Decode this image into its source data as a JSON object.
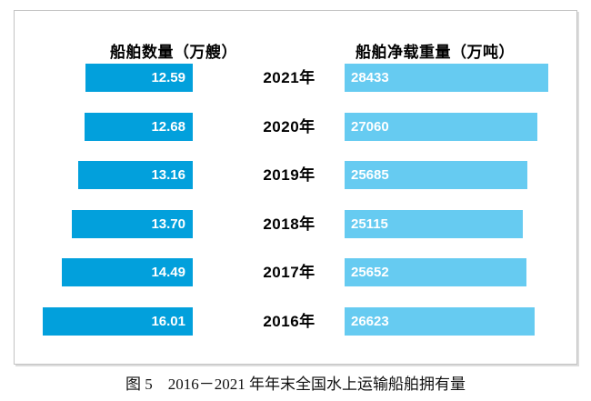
{
  "chart_data": {
    "type": "bar",
    "variant": "tornado",
    "title_left": "船舶数量（万艘）",
    "title_right": "船舶净载重量（万吨）",
    "categories": [
      "2021年",
      "2020年",
      "2019年",
      "2018年",
      "2017年",
      "2016年"
    ],
    "series": [
      {
        "name": "船舶数量（万艘）",
        "values": [
          12.59,
          12.68,
          13.16,
          13.7,
          14.49,
          16.01
        ],
        "labels": [
          "12.59",
          "12.68",
          "13.16",
          "13.70",
          "14.49",
          "16.01"
        ],
        "color": "#02a0dc",
        "axis_range": [
          4,
          16.5
        ],
        "direction": "right-to-left"
      },
      {
        "name": "船舶净载重量（万吨）",
        "values": [
          28433,
          27060,
          25685,
          25115,
          25652,
          26623
        ],
        "labels": [
          "28433",
          "27060",
          "25685",
          "25115",
          "25652",
          "26623"
        ],
        "color": "#66cbf1",
        "axis_range": [
          1700,
          32300
        ],
        "direction": "left-to-right"
      }
    ],
    "grid": false,
    "legend": "none",
    "value_label_color": "#ffffff"
  },
  "caption": "图 5　2016－2021 年年末全国水上运输船舶拥有量"
}
